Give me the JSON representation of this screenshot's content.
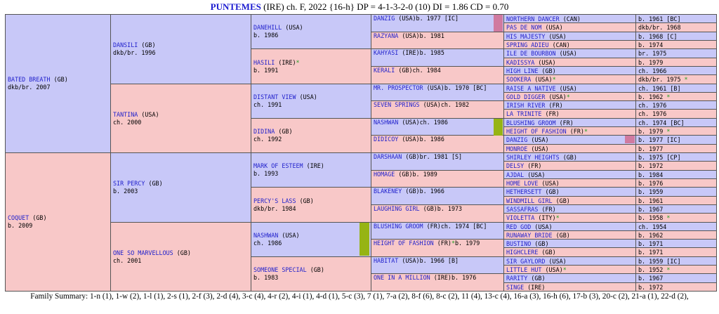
{
  "title": {
    "horse": "PUNTEMES",
    "rest": " (IRE) ch. F, 2022 {16-h} DP = 4-1-3-2-0 (10) DI = 1.86   CD = 0.70"
  },
  "colors": {
    "male": "#c8c8f8",
    "female": "#f8c8c8",
    "link": "#2222cc",
    "star": "#20a020",
    "dosage_green": "#96b414",
    "dosage_pink": "#d07aa0"
  },
  "gen1": [
    {
      "name": "BATED BREATH",
      "country": "(GB)",
      "line2": "dkb/br. 2007"
    },
    {
      "name": "COQUET",
      "country": "(GB)",
      "line2": "b. 2009"
    }
  ],
  "gen2": [
    {
      "name": "DANSILI",
      "country": "(GB)",
      "line2": "dkb/br. 1996"
    },
    {
      "name": "TANTINA",
      "country": "(USA)",
      "line2": "ch. 2000"
    },
    {
      "name": "SIR PERCY",
      "country": "(GB)",
      "line2": "b. 2003"
    },
    {
      "name": "ONE SO MARVELLOUS",
      "country": "(GB)",
      "line2": "ch. 2001"
    }
  ],
  "gen3": [
    {
      "name": "DANEHILL",
      "country": "(USA)",
      "line2": "b. 1986"
    },
    {
      "name": "HASILI",
      "country": "(IRE)",
      "star": "*",
      "line2": "b. 1991"
    },
    {
      "name": "DISTANT VIEW",
      "country": "(USA)",
      "line2": "ch. 1991"
    },
    {
      "name": "DIDINA",
      "country": "(GB)",
      "line2": "ch. 1992"
    },
    {
      "name": "MARK OF ESTEEM",
      "country": "(IRE)",
      "line2": "b. 1993"
    },
    {
      "name": "PERCY'S LASS",
      "country": "(GB)",
      "line2": "dkb/br. 1984"
    },
    {
      "name": "NASHWAN",
      "country": "(USA)",
      "line2": "ch. 1986"
    },
    {
      "name": "SOMEONE SPECIAL",
      "country": "(GB)",
      "line2": "b. 1983"
    }
  ],
  "gen4": [
    {
      "name": "DANZIG",
      "country": "(USA)",
      "line2": "b. 1977 [IC]"
    },
    {
      "name": "RAZYANA",
      "country": "(USA)",
      "line2": "b. 1981"
    },
    {
      "name": "KAHYASI",
      "country": "(IRE)",
      "line2": "b. 1985"
    },
    {
      "name": "KERALI",
      "country": "(GB)",
      "line2": "ch. 1984"
    },
    {
      "name": "MR. PROSPECTOR",
      "country": "(USA)",
      "line2": "b. 1970 [BC]"
    },
    {
      "name": "SEVEN SPRINGS",
      "country": "(USA)",
      "line2": "ch. 1982"
    },
    {
      "name": "NASHWAN",
      "country": "(USA)",
      "line2": "ch. 1986"
    },
    {
      "name": "DIDICOY",
      "country": "(USA)",
      "line2": "b. 1986"
    },
    {
      "name": "DARSHAAN",
      "country": "(GB)",
      "line2": "br. 1981 [S]"
    },
    {
      "name": "HOMAGE",
      "country": "(GB)",
      "line2": "b. 1989"
    },
    {
      "name": "BLAKENEY",
      "country": "(GB)",
      "line2": "b. 1966"
    },
    {
      "name": "LAUGHING GIRL",
      "country": "(GB)",
      "line2": "b. 1973"
    },
    {
      "name": "BLUSHING GROOM",
      "country": "(FR)",
      "line2": "ch. 1974 [BC]"
    },
    {
      "name": "HEIGHT OF FASHION",
      "country": "(FR)",
      "star": "*",
      "line2": "b. 1979"
    },
    {
      "name": "HABITAT",
      "country": "(USA)",
      "line2": "b. 1966 [B]"
    },
    {
      "name": "ONE IN A MILLION",
      "country": "(IRE)",
      "line2": "b. 1976"
    }
  ],
  "gen5": [
    {
      "name": "NORTHERN DANCER",
      "country": "(CAN)",
      "info": "b. 1961 [BC]"
    },
    {
      "name": "PAS DE NOM",
      "country": "(USA)",
      "info": "dkb/br. 1968"
    },
    {
      "name": "HIS MAJESTY",
      "country": "(USA)",
      "info": "b. 1968 [C]"
    },
    {
      "name": "SPRING ADIEU",
      "country": "(CAN)",
      "info": "b. 1974"
    },
    {
      "name": "ILE DE BOURBON",
      "country": "(USA)",
      "info": "br. 1975"
    },
    {
      "name": "KADISSYA",
      "country": "(USA)",
      "info": "b. 1979"
    },
    {
      "name": "HIGH LINE",
      "country": "(GB)",
      "info": "ch. 1966"
    },
    {
      "name": "SOOKERA",
      "country": "(USA)",
      "info": "dkb/br. 1975",
      "star": "*"
    },
    {
      "name": "RAISE A NATIVE",
      "country": "(USA)",
      "info": "ch. 1961 [B]"
    },
    {
      "name": "GOLD DIGGER",
      "country": "(USA)",
      "info": "b. 1962",
      "star": "*"
    },
    {
      "name": "IRISH RIVER",
      "country": "(FR)",
      "info": "ch. 1976"
    },
    {
      "name": "LA TRINITE",
      "country": "(FR)",
      "info": "ch. 1976"
    },
    {
      "name": "BLUSHING GROOM",
      "country": "(FR)",
      "info": "ch. 1974 [BC]"
    },
    {
      "name": "HEIGHT OF FASHION",
      "country": "(FR)",
      "info": "b. 1979",
      "star": "*"
    },
    {
      "name": "DANZIG",
      "country": "(USA)",
      "info": "b. 1977 [IC]"
    },
    {
      "name": "MONROE",
      "country": "(USA)",
      "info": "b. 1977"
    },
    {
      "name": "SHIRLEY HEIGHTS",
      "country": "(GB)",
      "info": "b. 1975 [CP]"
    },
    {
      "name": "DELSY",
      "country": "(FR)",
      "info": "b. 1972"
    },
    {
      "name": "AJDAL",
      "country": "(USA)",
      "info": "b. 1984"
    },
    {
      "name": "HOME LOVE",
      "country": "(USA)",
      "info": "b. 1976"
    },
    {
      "name": "HETHERSETT",
      "country": "(GB)",
      "info": "b. 1959"
    },
    {
      "name": "WINDMILL GIRL",
      "country": "(GB)",
      "info": "b. 1961"
    },
    {
      "name": "SASSAFRAS",
      "country": "(FR)",
      "info": "b. 1967"
    },
    {
      "name": "VIOLETTA",
      "country": "(ITY)",
      "info": "b. 1958",
      "star": "*"
    },
    {
      "name": "RED GOD",
      "country": "(USA)",
      "info": "ch. 1954"
    },
    {
      "name": "RUNAWAY BRIDE",
      "country": "(GB)",
      "info": "b. 1962"
    },
    {
      "name": "BUSTINO",
      "country": "(GB)",
      "info": "b. 1971"
    },
    {
      "name": "HIGHCLERE",
      "country": "(GB)",
      "info": "b. 1971"
    },
    {
      "name": "SIR GAYLORD",
      "country": "(USA)",
      "info": "b. 1959 [IC]"
    },
    {
      "name": "LITTLE HUT",
      "country": "(USA)",
      "info": "b. 1952",
      "star": "*"
    },
    {
      "name": "RARITY",
      "country": "(GB)",
      "info": "b. 1967"
    },
    {
      "name": "SINGE",
      "country": "(IRE)",
      "info": "b. 1972"
    }
  ],
  "footer": "Family Summary: 1-n (1), 1-w (2), 1-l (1), 2-s (1), 2-f (3), 2-d (4), 3-c (4), 4-r (2), 4-i (1), 4-d (1), 5-c (3), 7 (1), 7-a (2), 8-f (6), 8-c (2), 11 (4), 13-c (4), 16-a (3), 16-h (6), 17-b (3), 20-c (2), 21-a (1), 22-d (2),"
}
